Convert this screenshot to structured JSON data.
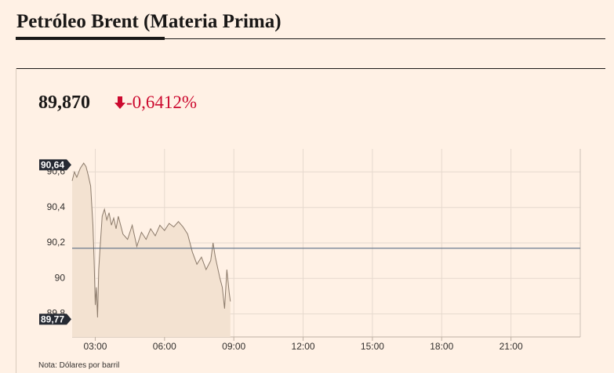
{
  "chart_data": {
    "type": "area",
    "title": "Petróleo Brent (Materia Prima)",
    "price": "89,870",
    "change": "-0,6412%",
    "note": "Nota: Dólares por barril",
    "color": "#8c7b6b",
    "fill": "#f3e2d1",
    "x": [
      2.0,
      2.1,
      2.2,
      2.35,
      2.5,
      2.6,
      2.7,
      2.8,
      2.9,
      2.95,
      3.0,
      3.05,
      3.1,
      3.15,
      3.2,
      3.3,
      3.4,
      3.5,
      3.6,
      3.7,
      3.8,
      3.9,
      4.0,
      4.2,
      4.4,
      4.6,
      4.8,
      5.0,
      5.2,
      5.4,
      5.6,
      5.8,
      6.0,
      6.2,
      6.4,
      6.6,
      6.8,
      7.0,
      7.2,
      7.4,
      7.6,
      7.8,
      8.0,
      8.1,
      8.2,
      8.4,
      8.5,
      8.6,
      8.7,
      8.8,
      8.85
    ],
    "values": [
      90.55,
      90.6,
      90.57,
      90.62,
      90.65,
      90.63,
      90.58,
      90.52,
      90.3,
      90.1,
      89.85,
      89.95,
      89.78,
      90.05,
      90.15,
      90.35,
      90.39,
      90.33,
      90.37,
      90.3,
      90.34,
      90.28,
      90.35,
      90.25,
      90.22,
      90.3,
      90.18,
      90.26,
      90.22,
      90.28,
      90.24,
      90.3,
      90.27,
      90.31,
      90.29,
      90.32,
      90.29,
      90.25,
      90.15,
      90.08,
      90.12,
      90.05,
      90.1,
      90.2,
      90.12,
      90.0,
      89.95,
      89.83,
      90.05,
      89.92,
      89.87
    ],
    "reference_line": 90.17,
    "reference_color": "#5a6e86",
    "annotations": [
      {
        "value": 90.64,
        "label": "90,64"
      },
      {
        "value": 89.77,
        "label": "89,77"
      }
    ],
    "xlim": [
      2,
      24
    ],
    "xticks": [
      {
        "value": 3,
        "label": "03:00"
      },
      {
        "value": 6,
        "label": "06:00"
      },
      {
        "value": 9,
        "label": "09:00"
      },
      {
        "value": 12,
        "label": "12:00"
      },
      {
        "value": 15,
        "label": "15:00"
      },
      {
        "value": 18,
        "label": "18:00"
      },
      {
        "value": 21,
        "label": "21:00"
      }
    ],
    "ylim": [
      89.67,
      90.73
    ],
    "yticks": [
      {
        "value": 89.8,
        "label": "89,8"
      },
      90,
      {
        "value": 90.2,
        "label": "90,2"
      },
      {
        "value": 90.4,
        "label": "90,4"
      },
      {
        "value": 90.6,
        "label": "90,6"
      }
    ],
    "grid": true
  }
}
